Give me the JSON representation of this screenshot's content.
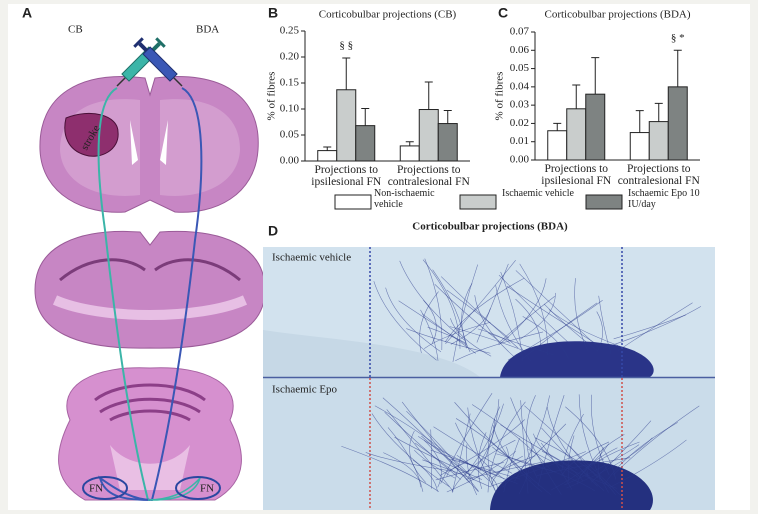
{
  "panels": {
    "a": {
      "label": "A",
      "tracers": [
        "CB",
        "BDA"
      ],
      "lesion": "stroke",
      "nuclei": [
        "FN",
        "FN"
      ]
    },
    "d": {
      "label": "D",
      "title": "Corticobulbar projections (BDA)",
      "images": [
        "Ischaemic vehicle",
        "Ischaemic Epo"
      ]
    }
  },
  "chart_data": [
    {
      "type": "bar",
      "panel_label": "B",
      "title": "Corticobulbar projections (CB)",
      "y_label": "% of fibres",
      "categories": [
        "Projections to ipsilesional FN",
        "Projections to contralesional FN"
      ],
      "series": [
        {
          "name": "Non-ischaemic vehicle",
          "color": "#ffffff",
          "values": [
            0.02,
            0.029
          ],
          "errors": [
            0.007,
            0.008
          ]
        },
        {
          "name": "Ischaemic vehicle",
          "color": "#c9cdcc",
          "values": [
            0.137,
            0.099
          ],
          "errors": [
            0.061,
            0.053
          ]
        },
        {
          "name": "Ischaemic Epo 10 IU/day",
          "color": "#7e8382",
          "values": [
            0.068,
            0.072
          ],
          "errors": [
            0.033,
            0.025
          ]
        }
      ],
      "annotation": "§ §",
      "ylim": [
        0,
        0.25
      ],
      "yticks": [
        {
          "value": 0,
          "label": "0.00"
        },
        0.05,
        {
          "value": 0.1,
          "label": "0.10"
        },
        0.15,
        {
          "value": 0.2,
          "label": "0.20"
        },
        0.25
      ]
    },
    {
      "type": "bar",
      "panel_label": "C",
      "title": "Corticobulbar projections (BDA)",
      "y_label": "% of fibres",
      "categories": [
        "Projections to ipsilesional FN",
        "Projections to contralesional FN"
      ],
      "series": [
        {
          "color": "#ffffff",
          "values": [
            0.016,
            0.015
          ],
          "errors": [
            0.004,
            0.012
          ]
        },
        {
          "color": "#c9cdcc",
          "values": [
            0.028,
            0.021
          ],
          "errors": [
            0.013,
            0.01
          ]
        },
        {
          "color": "#7e8382",
          "values": [
            0.036,
            0.04
          ],
          "errors": [
            0.02,
            0.02
          ]
        }
      ],
      "annotation": "§ *",
      "ylim": [
        0,
        0.07
      ],
      "yticks": [
        {
          "value": 0,
          "label": "0.00"
        },
        0.01,
        0.02,
        0.03,
        0.04,
        0.05,
        0.06,
        0.07
      ]
    }
  ]
}
